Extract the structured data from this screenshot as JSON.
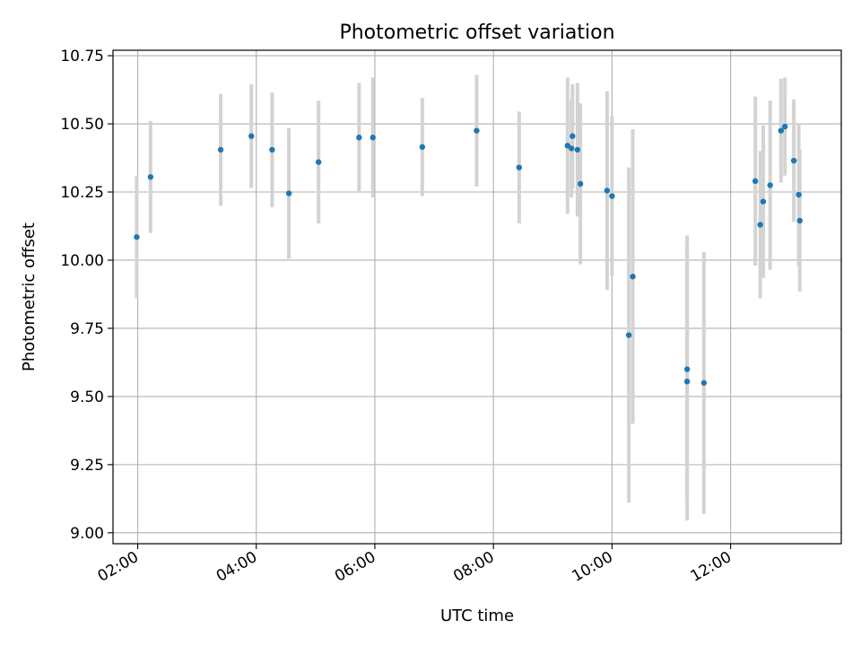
{
  "chart_data": {
    "type": "scatter",
    "title": "Photometric offset variation",
    "xlabel": "UTC time",
    "ylabel": "Photometric offset",
    "x_unit": "hours UTC",
    "xlim": [
      "01:35",
      "13:52"
    ],
    "ylim": [
      8.96,
      10.77
    ],
    "x_ticks": [
      {
        "value": "02:00",
        "label": "02:00"
      },
      {
        "value": "04:00",
        "label": "04:00"
      },
      {
        "value": "06:00",
        "label": "06:00"
      },
      {
        "value": "08:00",
        "label": "08:00"
      },
      {
        "value": "10:00",
        "label": "10:00"
      },
      {
        "value": "12:00",
        "label": "12:00"
      }
    ],
    "y_ticks": [
      {
        "value": 9.0,
        "label": "9.00"
      },
      {
        "value": 9.25,
        "label": "9.25"
      },
      {
        "value": 9.5,
        "label": "9.50"
      },
      {
        "value": 9.75,
        "label": "9.75"
      },
      {
        "value": 10.0,
        "label": "10.00"
      },
      {
        "value": 10.25,
        "label": "10.25"
      },
      {
        "value": 10.5,
        "label": "10.50"
      },
      {
        "value": 10.75,
        "label": "10.75"
      }
    ],
    "grid": true,
    "colors": {
      "point": "#1f77b4",
      "errorbar": "#d3d3d3",
      "grid": "#b0b0b0"
    },
    "points": [
      {
        "x": "01:59",
        "y": 10.085,
        "err": 0.225
      },
      {
        "x": "02:13",
        "y": 10.305,
        "err": 0.205
      },
      {
        "x": "03:24",
        "y": 10.405,
        "err": 0.205
      },
      {
        "x": "03:55",
        "y": 10.455,
        "err": 0.19
      },
      {
        "x": "04:16",
        "y": 10.405,
        "err": 0.21
      },
      {
        "x": "04:33",
        "y": 10.245,
        "err": 0.24
      },
      {
        "x": "05:03",
        "y": 10.36,
        "err": 0.225
      },
      {
        "x": "05:44",
        "y": 10.45,
        "err": 0.2
      },
      {
        "x": "05:58",
        "y": 10.45,
        "err": 0.22
      },
      {
        "x": "06:48",
        "y": 10.415,
        "err": 0.18
      },
      {
        "x": "07:43",
        "y": 10.475,
        "err": 0.205
      },
      {
        "x": "08:26",
        "y": 10.34,
        "err": 0.205
      },
      {
        "x": "09:15",
        "y": 10.42,
        "err": 0.25
      },
      {
        "x": "09:19",
        "y": 10.41,
        "err": 0.18
      },
      {
        "x": "09:20",
        "y": 10.455,
        "err": 0.19
      },
      {
        "x": "09:25",
        "y": 10.405,
        "err": 0.245
      },
      {
        "x": "09:28",
        "y": 10.28,
        "err": 0.295
      },
      {
        "x": "09:55",
        "y": 10.255,
        "err": 0.365
      },
      {
        "x": "10:00",
        "y": 10.235,
        "err": 0.295
      },
      {
        "x": "10:17",
        "y": 9.725,
        "err": 0.615
      },
      {
        "x": "10:21",
        "y": 9.94,
        "err": 0.54
      },
      {
        "x": "11:16",
        "y": 9.6,
        "err": 0.49
      },
      {
        "x": "11:16",
        "y": 9.555,
        "err": 0.51
      },
      {
        "x": "11:33",
        "y": 9.55,
        "err": 0.48
      },
      {
        "x": "12:25",
        "y": 10.29,
        "err": 0.31
      },
      {
        "x": "12:30",
        "y": 10.13,
        "err": 0.27
      },
      {
        "x": "12:33",
        "y": 10.215,
        "err": 0.28
      },
      {
        "x": "12:40",
        "y": 10.275,
        "err": 0.31
      },
      {
        "x": "12:51",
        "y": 10.475,
        "err": 0.19
      },
      {
        "x": "12:55",
        "y": 10.49,
        "err": 0.18
      },
      {
        "x": "13:04",
        "y": 10.365,
        "err": 0.225
      },
      {
        "x": "13:09",
        "y": 10.24,
        "err": 0.26
      },
      {
        "x": "13:10",
        "y": 10.145,
        "err": 0.26
      }
    ]
  }
}
